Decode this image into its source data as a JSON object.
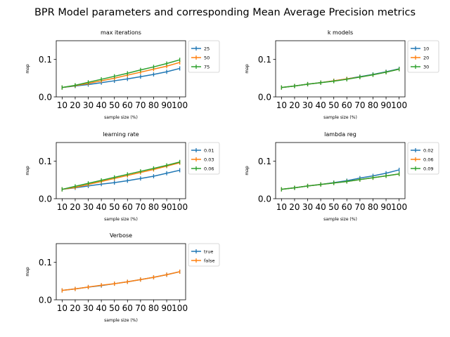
{
  "figure_title": "BPR Model parameters and corresponding Mean Average Precision metrics",
  "chart_data": [
    {
      "type": "line",
      "title": "max iterations",
      "xlabel": "sample size (%)",
      "ylabel": "map",
      "x": [
        10,
        20,
        30,
        40,
        50,
        60,
        70,
        80,
        90,
        100
      ],
      "xticks": [
        "10",
        "20",
        "30",
        "40",
        "50",
        "60",
        "70",
        "80",
        "90",
        "100"
      ],
      "ylim": [
        0,
        0.15
      ],
      "yticks": [
        "0.0",
        "0.1"
      ],
      "legend_position": "outside-right",
      "series": [
        {
          "name": "25",
          "color": "#1f77b4",
          "values": [
            0.025,
            0.029,
            0.033,
            0.038,
            0.043,
            0.048,
            0.054,
            0.06,
            0.067,
            0.076
          ]
        },
        {
          "name": "50",
          "color": "#ff7f0e",
          "values": [
            0.025,
            0.03,
            0.036,
            0.043,
            0.05,
            0.058,
            0.066,
            0.074,
            0.082,
            0.092
          ]
        },
        {
          "name": "75",
          "color": "#2ca02c",
          "values": [
            0.025,
            0.031,
            0.039,
            0.047,
            0.055,
            0.063,
            0.072,
            0.08,
            0.089,
            0.099
          ]
        }
      ]
    },
    {
      "type": "line",
      "title": "k models",
      "xlabel": "sample size (%)",
      "ylabel": "map",
      "x": [
        10,
        20,
        30,
        40,
        50,
        60,
        70,
        80,
        90,
        100
      ],
      "xticks": [
        "10",
        "20",
        "30",
        "40",
        "50",
        "60",
        "70",
        "80",
        "90",
        "100"
      ],
      "ylim": [
        0,
        0.15
      ],
      "yticks": [
        "0.0",
        "0.1"
      ],
      "legend_position": "outside-right",
      "series": [
        {
          "name": "10",
          "color": "#1f77b4",
          "values": [
            0.025,
            0.029,
            0.034,
            0.038,
            0.043,
            0.048,
            0.054,
            0.06,
            0.067,
            0.075
          ]
        },
        {
          "name": "20",
          "color": "#ff7f0e",
          "values": [
            0.025,
            0.029,
            0.034,
            0.038,
            0.043,
            0.048,
            0.053,
            0.059,
            0.066,
            0.074
          ]
        },
        {
          "name": "30",
          "color": "#2ca02c",
          "values": [
            0.025,
            0.029,
            0.034,
            0.038,
            0.042,
            0.047,
            0.053,
            0.059,
            0.066,
            0.074
          ]
        }
      ]
    },
    {
      "type": "line",
      "title": "learning rate",
      "xlabel": "sample size (%)",
      "ylabel": "map",
      "x": [
        10,
        20,
        30,
        40,
        50,
        60,
        70,
        80,
        90,
        100
      ],
      "xticks": [
        "10",
        "20",
        "30",
        "40",
        "50",
        "60",
        "70",
        "80",
        "90",
        "100"
      ],
      "ylim": [
        0,
        0.15
      ],
      "yticks": [
        "0.0",
        "0.1"
      ],
      "legend_position": "outside-right",
      "series": [
        {
          "name": "0.01",
          "color": "#1f77b4",
          "values": [
            0.025,
            0.029,
            0.034,
            0.039,
            0.043,
            0.048,
            0.054,
            0.06,
            0.068,
            0.076
          ]
        },
        {
          "name": "0.03",
          "color": "#ff7f0e",
          "values": [
            0.025,
            0.03,
            0.038,
            0.046,
            0.054,
            0.062,
            0.07,
            0.078,
            0.087,
            0.096
          ]
        },
        {
          "name": "0.06",
          "color": "#2ca02c",
          "values": [
            0.025,
            0.033,
            0.041,
            0.049,
            0.057,
            0.065,
            0.073,
            0.081,
            0.089,
            0.098
          ]
        }
      ]
    },
    {
      "type": "line",
      "title": "lambda reg",
      "xlabel": "sample size (%)",
      "ylabel": "map",
      "x": [
        10,
        20,
        30,
        40,
        50,
        60,
        70,
        80,
        90,
        100
      ],
      "xticks": [
        "10",
        "20",
        "30",
        "40",
        "50",
        "60",
        "70",
        "80",
        "90",
        "100"
      ],
      "ylim": [
        0,
        0.15
      ],
      "yticks": [
        "0.0",
        "0.1"
      ],
      "legend_position": "outside-right",
      "series": [
        {
          "name": "0.02",
          "color": "#1f77b4",
          "values": [
            0.025,
            0.029,
            0.034,
            0.038,
            0.043,
            0.048,
            0.055,
            0.061,
            0.068,
            0.077
          ]
        },
        {
          "name": "0.06",
          "color": "#ff7f0e",
          "values": [
            0.025,
            0.029,
            0.034,
            0.038,
            0.042,
            0.046,
            0.051,
            0.056,
            0.061,
            0.066
          ]
        },
        {
          "name": "0.09",
          "color": "#2ca02c",
          "values": [
            0.025,
            0.029,
            0.034,
            0.038,
            0.042,
            0.046,
            0.051,
            0.056,
            0.061,
            0.066
          ]
        }
      ]
    },
    {
      "type": "line",
      "title": "Verbose",
      "xlabel": "sample size (%)",
      "ylabel": "map",
      "x": [
        10,
        20,
        30,
        40,
        50,
        60,
        70,
        80,
        90,
        100
      ],
      "xticks": [
        "10",
        "20",
        "30",
        "40",
        "50",
        "60",
        "70",
        "80",
        "90",
        "100"
      ],
      "ylim": [
        0,
        0.15
      ],
      "yticks": [
        "0.0",
        "0.1"
      ],
      "legend_position": "outside-right",
      "series": [
        {
          "name": "true",
          "color": "#1f77b4",
          "values": [
            0.025,
            0.029,
            0.034,
            0.038,
            0.043,
            0.048,
            0.054,
            0.06,
            0.067,
            0.075
          ]
        },
        {
          "name": "false",
          "color": "#ff7f0e",
          "values": [
            0.025,
            0.029,
            0.034,
            0.039,
            0.043,
            0.048,
            0.054,
            0.06,
            0.067,
            0.075
          ]
        }
      ]
    }
  ]
}
